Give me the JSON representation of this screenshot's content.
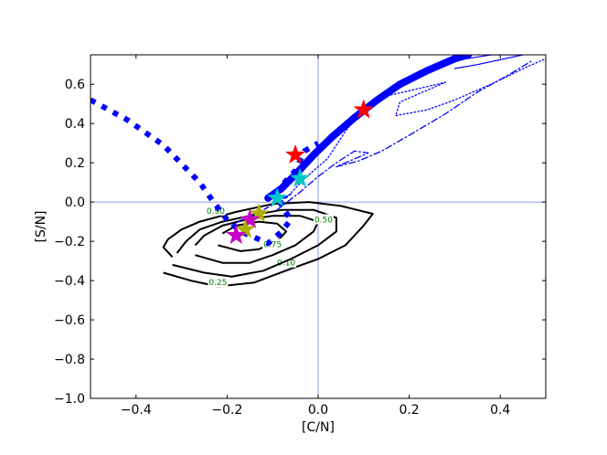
{
  "chart_data": {
    "type": "line",
    "title": "",
    "xlabel": "[C/N]",
    "ylabel": "[S/N]",
    "xlim": [
      -0.5,
      0.5
    ],
    "ylim": [
      -1.0,
      0.75
    ],
    "grid": false,
    "legend": "none",
    "x_ticks": [
      -0.4,
      -0.2,
      0.0,
      0.2,
      0.4
    ],
    "y_ticks": [
      -1.0,
      -0.8,
      -0.6,
      -0.4,
      -0.2,
      0.0,
      0.2,
      0.4,
      0.6
    ],
    "x_tick_labels": [
      "−0.4",
      "−0.2",
      "0.0",
      "0.2",
      "0.4"
    ],
    "y_tick_labels": [
      "−1.0",
      "−0.8",
      "−0.6",
      "−0.4",
      "−0.2",
      "0.0",
      "0.2",
      "0.4",
      "0.6"
    ],
    "reference_lines": {
      "x": 0.0,
      "y": 0.0,
      "color": "#6a7fe8"
    },
    "colors": {
      "blue": "#0000ff",
      "contour": "#000000",
      "contour_label": "#008000",
      "red": "#ff0000",
      "cyan": "#00c8c8",
      "yellow": "#b0b000",
      "magenta": "#c800c8"
    },
    "series": [
      {
        "style": "thick-solid",
        "points": [
          [
            -0.11,
            0.02
          ],
          [
            -0.08,
            0.07
          ],
          [
            -0.05,
            0.14
          ],
          [
            -0.01,
            0.24
          ],
          [
            0.03,
            0.33
          ],
          [
            0.08,
            0.43
          ],
          [
            0.13,
            0.52
          ],
          [
            0.18,
            0.6
          ],
          [
            0.24,
            0.67
          ],
          [
            0.3,
            0.73
          ],
          [
            0.33,
            0.75
          ]
        ]
      },
      {
        "style": "thin-solid",
        "points": [
          [
            0.3,
            0.72
          ],
          [
            0.38,
            0.75
          ],
          [
            0.45,
            0.75
          ],
          [
            0.35,
            0.7
          ],
          [
            0.3,
            0.68
          ]
        ]
      },
      {
        "style": "dotted",
        "points": [
          [
            -0.07,
            0.02
          ],
          [
            -0.03,
            0.12
          ],
          [
            0.02,
            0.22
          ],
          [
            0.06,
            0.36
          ],
          [
            0.1,
            0.48
          ],
          [
            0.15,
            0.54
          ],
          [
            0.28,
            0.61
          ],
          [
            0.18,
            0.51
          ],
          [
            0.17,
            0.44
          ],
          [
            0.24,
            0.47
          ],
          [
            0.3,
            0.52
          ],
          [
            0.38,
            0.6
          ],
          [
            0.46,
            0.69
          ],
          [
            0.5,
            0.73
          ]
        ]
      },
      {
        "style": "dashdot",
        "points": [
          [
            -0.09,
            -0.04
          ],
          [
            -0.04,
            0.05
          ],
          [
            0.0,
            0.13
          ],
          [
            0.04,
            0.2
          ],
          [
            0.08,
            0.26
          ],
          [
            0.11,
            0.25
          ],
          [
            0.04,
            0.18
          ],
          [
            0.09,
            0.21
          ],
          [
            0.14,
            0.26
          ],
          [
            0.2,
            0.34
          ],
          [
            0.28,
            0.45
          ],
          [
            0.35,
            0.56
          ],
          [
            0.42,
            0.65
          ],
          [
            0.47,
            0.72
          ]
        ]
      },
      {
        "style": "thick-dotted",
        "points": [
          [
            -0.5,
            0.52
          ],
          [
            -0.42,
            0.42
          ],
          [
            -0.34,
            0.29
          ],
          [
            -0.26,
            0.1
          ],
          [
            -0.23,
            0.0
          ],
          [
            -0.2,
            -0.09
          ],
          [
            -0.17,
            -0.15
          ],
          [
            -0.14,
            -0.18
          ],
          [
            -0.11,
            -0.21
          ],
          [
            -0.08,
            -0.15
          ],
          [
            -0.06,
            -0.09
          ],
          [
            -0.08,
            -0.02
          ],
          [
            -0.09,
            0.05
          ],
          [
            -0.07,
            0.11
          ],
          [
            -0.05,
            0.16
          ],
          [
            -0.04,
            0.21
          ],
          [
            -0.03,
            0.26
          ],
          [
            0.0,
            0.3
          ]
        ]
      },
      {
        "style": "dashed",
        "points": [
          [
            -0.19,
            -0.12
          ],
          [
            -0.16,
            -0.08
          ],
          [
            -0.12,
            -0.04
          ],
          [
            -0.09,
            0.0
          ],
          [
            -0.06,
            0.04
          ]
        ]
      }
    ],
    "contours": [
      {
        "label": "0.10",
        "label_at": [
          -0.07,
          -0.31
        ],
        "points": [
          [
            -0.34,
            -0.36
          ],
          [
            -0.28,
            -0.4
          ],
          [
            -0.22,
            -0.43
          ],
          [
            -0.14,
            -0.41
          ],
          [
            -0.06,
            -0.34
          ],
          [
            0.0,
            -0.29
          ],
          [
            0.06,
            -0.22
          ],
          [
            0.1,
            -0.12
          ],
          [
            0.12,
            -0.06
          ],
          [
            0.05,
            -0.02
          ],
          [
            -0.02,
            0.0
          ],
          [
            -0.1,
            -0.01
          ],
          [
            -0.18,
            -0.05
          ],
          [
            -0.26,
            -0.1
          ],
          [
            -0.3,
            -0.14
          ],
          [
            -0.33,
            -0.19
          ],
          [
            -0.34,
            -0.23
          ],
          [
            -0.32,
            -0.28
          ]
        ]
      },
      {
        "label": "0.25",
        "label_at": [
          -0.22,
          -0.41
        ],
        "points": [
          [
            -0.32,
            -0.32
          ],
          [
            -0.25,
            -0.36
          ],
          [
            -0.19,
            -0.38
          ],
          [
            -0.12,
            -0.35
          ],
          [
            -0.06,
            -0.29
          ],
          [
            0.0,
            -0.22
          ],
          [
            0.04,
            -0.15
          ],
          [
            0.04,
            -0.08
          ],
          [
            -0.01,
            -0.04
          ],
          [
            -0.08,
            -0.04
          ],
          [
            -0.15,
            -0.07
          ],
          [
            -0.21,
            -0.1
          ],
          [
            -0.26,
            -0.14
          ],
          [
            -0.29,
            -0.2
          ],
          [
            -0.31,
            -0.26
          ]
        ]
      },
      {
        "label": "0.50",
        "label_at": [
          0.012,
          -0.09
        ],
        "points": [
          [
            -0.27,
            -0.27
          ],
          [
            -0.21,
            -0.31
          ],
          [
            -0.15,
            -0.31
          ],
          [
            -0.1,
            -0.27
          ],
          [
            -0.05,
            -0.22
          ],
          [
            -0.01,
            -0.15
          ],
          [
            0.0,
            -0.1
          ],
          [
            -0.04,
            -0.07
          ],
          [
            -0.1,
            -0.07
          ],
          [
            -0.16,
            -0.09
          ],
          [
            -0.21,
            -0.12
          ],
          [
            -0.25,
            -0.17
          ],
          [
            -0.27,
            -0.22
          ]
        ]
      },
      {
        "label": "0.75",
        "label_at": [
          -0.1,
          -0.215
        ],
        "points": [
          [
            -0.22,
            -0.22
          ],
          [
            -0.17,
            -0.25
          ],
          [
            -0.13,
            -0.24
          ],
          [
            -0.09,
            -0.2
          ],
          [
            -0.07,
            -0.15
          ],
          [
            -0.09,
            -0.11
          ],
          [
            -0.13,
            -0.1
          ],
          [
            -0.18,
            -0.12
          ],
          [
            -0.21,
            -0.16
          ]
        ]
      },
      {
        "label": "0.90",
        "label_at": [
          -0.225,
          -0.045
        ],
        "points": []
      }
    ],
    "markers": [
      {
        "color": "red",
        "x": 0.1,
        "y": 0.47
      },
      {
        "color": "red",
        "x": -0.05,
        "y": 0.24
      },
      {
        "color": "cyan",
        "x": -0.04,
        "y": 0.12
      },
      {
        "color": "cyan",
        "x": -0.09,
        "y": 0.02
      },
      {
        "color": "yellow",
        "x": -0.13,
        "y": -0.06
      },
      {
        "color": "magenta",
        "x": -0.15,
        "y": -0.09
      },
      {
        "color": "yellow",
        "x": -0.16,
        "y": -0.14
      },
      {
        "color": "magenta",
        "x": -0.18,
        "y": -0.17
      }
    ]
  }
}
